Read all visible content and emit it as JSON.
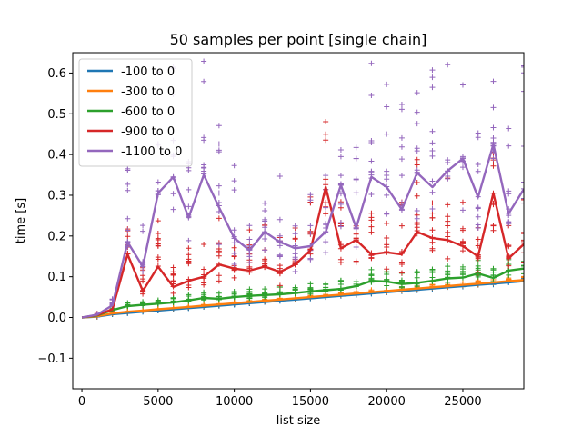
{
  "chart_data": {
    "type": "line",
    "title": "50 samples per point [single chain]",
    "xlabel": "list size",
    "ylabel": "time [s]",
    "xlim": [
      -600,
      29000
    ],
    "ylim": [
      -0.175,
      0.65
    ],
    "xticks": [
      0,
      5000,
      10000,
      15000,
      20000,
      25000
    ],
    "xtick_labels": [
      "0",
      "5000",
      "10000",
      "15000",
      "20000",
      "25000"
    ],
    "yticks": [
      -0.1,
      0.0,
      0.1,
      0.2,
      0.3,
      0.4,
      0.5,
      0.6
    ],
    "ytick_labels": [
      "−0.1",
      "0.0",
      "0.1",
      "0.2",
      "0.3",
      "0.4",
      "0.5",
      "0.6"
    ],
    "grid": false,
    "legend_position": "top-left",
    "markers": "plus (+) samples per point, mean shown as line",
    "x": [
      0,
      1000,
      2000,
      3000,
      4000,
      5000,
      6000,
      7000,
      8000,
      9000,
      10000,
      11000,
      12000,
      13000,
      14000,
      15000,
      16000,
      17000,
      18000,
      19000,
      20000,
      21000,
      22000,
      23000,
      24000,
      25000,
      26000,
      27000,
      28000,
      29000
    ],
    "series": [
      {
        "name": "-100 to 0",
        "color": "#1f77b4",
        "values": [
          0.0,
          0.002,
          0.008,
          0.011,
          0.014,
          0.017,
          0.02,
          0.023,
          0.026,
          0.029,
          0.032,
          0.035,
          0.038,
          0.041,
          0.044,
          0.047,
          0.05,
          0.053,
          0.056,
          0.059,
          0.062,
          0.065,
          0.068,
          0.071,
          0.074,
          0.077,
          0.08,
          0.083,
          0.086,
          0.089
        ]
      },
      {
        "name": "-300 to 0",
        "color": "#ff7f0e",
        "values": [
          0.0,
          0.003,
          0.01,
          0.014,
          0.017,
          0.02,
          0.023,
          0.026,
          0.029,
          0.032,
          0.035,
          0.038,
          0.041,
          0.044,
          0.047,
          0.05,
          0.053,
          0.056,
          0.059,
          0.062,
          0.065,
          0.068,
          0.071,
          0.074,
          0.077,
          0.08,
          0.083,
          0.086,
          0.089,
          0.092
        ]
      },
      {
        "name": "-600 to 0",
        "color": "#2ca02c",
        "values": [
          0.0,
          0.005,
          0.018,
          0.028,
          0.031,
          0.034,
          0.037,
          0.042,
          0.048,
          0.046,
          0.05,
          0.053,
          0.055,
          0.057,
          0.06,
          0.064,
          0.067,
          0.07,
          0.077,
          0.09,
          0.088,
          0.082,
          0.085,
          0.09,
          0.096,
          0.098,
          0.108,
          0.097,
          0.115,
          0.12
        ]
      },
      {
        "name": "-900 to 0",
        "color": "#d62728",
        "values": [
          0.0,
          0.006,
          0.02,
          0.155,
          0.065,
          0.125,
          0.075,
          0.09,
          0.1,
          0.13,
          0.12,
          0.115,
          0.125,
          0.112,
          0.13,
          0.165,
          0.32,
          0.17,
          0.19,
          0.155,
          0.16,
          0.155,
          0.21,
          0.195,
          0.19,
          0.175,
          0.15,
          0.305,
          0.145,
          0.18
        ]
      },
      {
        "name": "-1100 to 0",
        "color": "#9467bd",
        "values": [
          0.0,
          0.007,
          0.03,
          0.185,
          0.125,
          0.305,
          0.345,
          0.245,
          0.35,
          0.27,
          0.195,
          0.165,
          0.21,
          0.185,
          0.17,
          0.175,
          0.21,
          0.325,
          0.22,
          0.345,
          0.32,
          0.265,
          0.355,
          0.32,
          0.36,
          0.39,
          0.295,
          0.425,
          0.255,
          0.315
        ]
      }
    ]
  }
}
